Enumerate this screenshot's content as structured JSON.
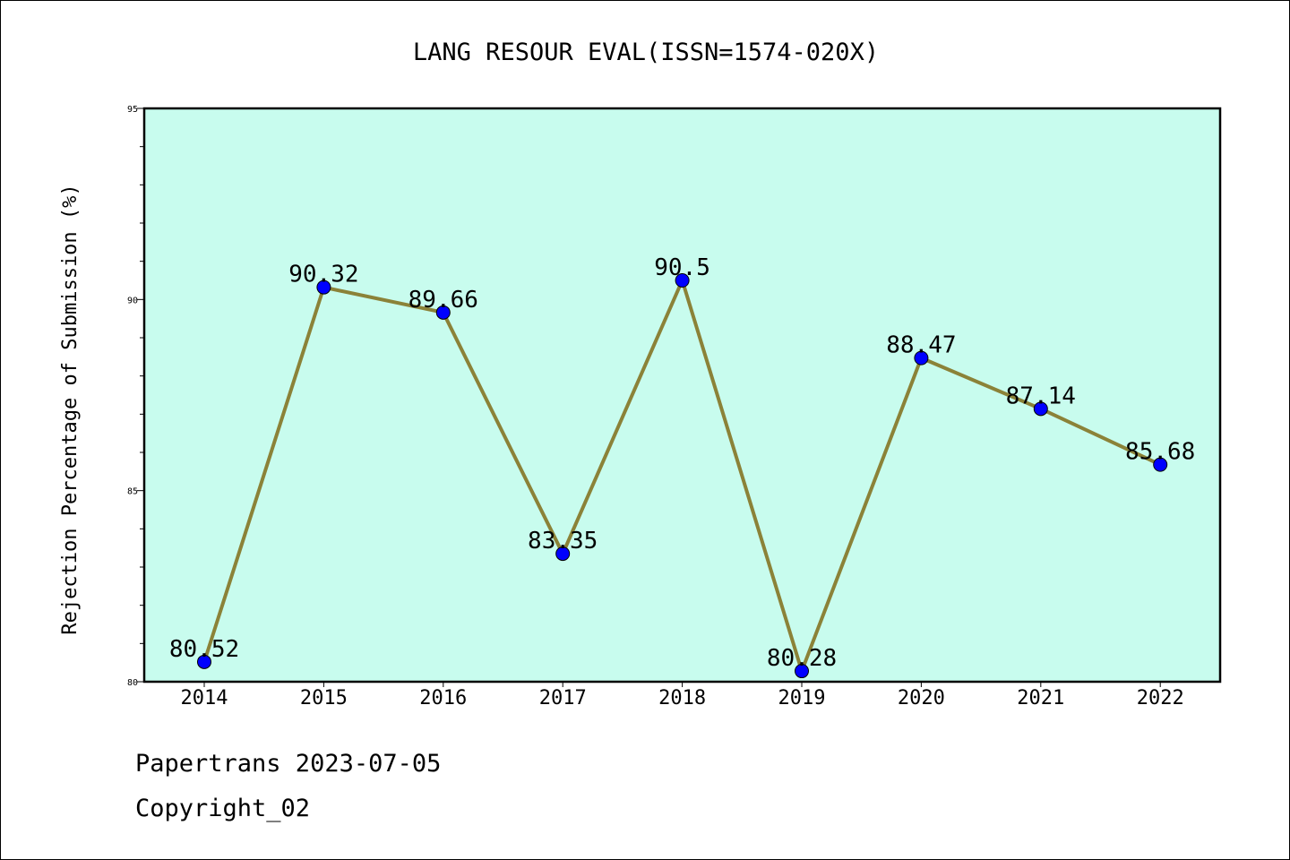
{
  "chart_data": {
    "type": "line",
    "title": "LANG RESOUR EVAL(ISSN=1574-020X)",
    "xlabel": "",
    "ylabel": "Rejection Percentage of Submission (%)",
    "categories": [
      "2014",
      "2015",
      "2016",
      "2017",
      "2018",
      "2019",
      "2020",
      "2021",
      "2022"
    ],
    "series": [
      {
        "values": [
          80.52,
          90.32,
          89.66,
          83.35,
          90.5,
          80.28,
          88.47,
          87.14,
          85.68
        ],
        "data_labels": [
          "80.52",
          "90.32",
          "89.66",
          "83.35",
          "90.5",
          "80.28",
          "88.47",
          "87.14",
          "85.68"
        ]
      }
    ],
    "ylim": [
      80,
      95
    ],
    "y_ticks": [
      "80",
      "85",
      "90",
      "95"
    ],
    "y_minor_step": 1,
    "grid": false,
    "legend": "none",
    "colors": {
      "plot_background": "#c8fcee",
      "line": "#8b8238",
      "marker": "#0000ff"
    }
  },
  "footer": {
    "line1": "Papertrans 2023-07-05",
    "line2": "Copyright_02"
  }
}
